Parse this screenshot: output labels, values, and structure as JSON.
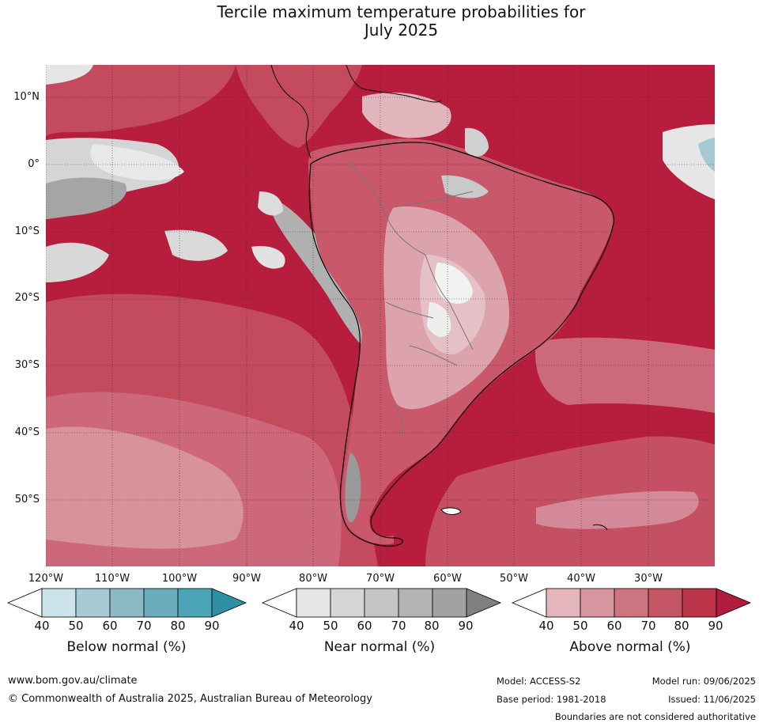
{
  "title": {
    "line1": "Tercile maximum temperature probabilities for",
    "line2": "July 2025"
  },
  "map": {
    "lat_labels": [
      "10°N",
      "0°",
      "10°S",
      "20°S",
      "30°S",
      "40°S",
      "50°S"
    ],
    "lon_labels": [
      "120°W",
      "110°W",
      "100°W",
      "90°W",
      "80°W",
      "70°W",
      "60°W",
      "50°W",
      "40°W",
      "30°W"
    ]
  },
  "colorbars": [
    {
      "label": "Below normal (%)",
      "ticks": [
        "40",
        "50",
        "60",
        "70",
        "80",
        "90"
      ],
      "colors": [
        "#ffffff",
        "#cde3ea",
        "#a8cad2",
        "#8bbac4",
        "#6cadbd",
        "#4ba5b7",
        "#2e8fa5"
      ]
    },
    {
      "label": "Near normal (%)",
      "ticks": [
        "40",
        "50",
        "60",
        "70",
        "80",
        "90"
      ],
      "colors": [
        "#ffffff",
        "#e6e6e6",
        "#d5d5d5",
        "#c4c4c4",
        "#b3b3b3",
        "#a2a2a2",
        "#808080"
      ]
    },
    {
      "label": "Above normal (%)",
      "ticks": [
        "40",
        "50",
        "60",
        "70",
        "80",
        "90"
      ],
      "colors": [
        "#ffffff",
        "#e3b5bc",
        "#d7959f",
        "#cc7480",
        "#c45565",
        "#bb3349",
        "#b01c3b"
      ]
    }
  ],
  "footer": {
    "url": "www.bom.gov.au/climate",
    "copyright": "© Commonwealth of Australia 2025, Australian Bureau of Meteorology",
    "model": "Model: ACCESS-S2",
    "base_period": "Base period: 1981-2018",
    "model_run": "Model run: 09/06/2025",
    "issued": "Issued: 11/06/2025",
    "disclaimer": "Boundaries are not considered authoritative"
  }
}
